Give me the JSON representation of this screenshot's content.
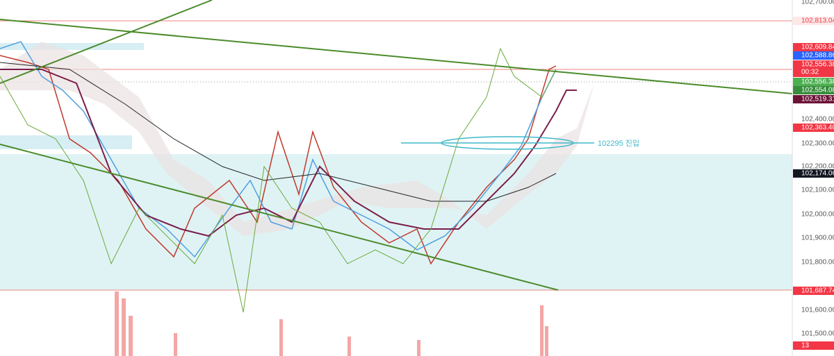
{
  "price_axis": {
    "ticks": [
      "102,700.00",
      "102,400.00",
      "102,300.00",
      "102,200.00",
      "102,100.00",
      "102,000.00",
      "101,900.00",
      "101,800.00",
      "101,600.00",
      "101,500.00"
    ]
  },
  "price_tags": [
    {
      "label": "102,813.04",
      "color": "#f23645",
      "style": "outline"
    },
    {
      "label": "102,609.84",
      "color": "#f23645",
      "style": "solid"
    },
    {
      "label": "102,588.86",
      "color": "#2962ff",
      "style": "solid"
    },
    {
      "label": "102,556.38",
      "sub": "00:32",
      "color": "#f23645",
      "style": "solid"
    },
    {
      "label": "102,556.38",
      "color": "#4caf50",
      "style": "solid"
    },
    {
      "label": "102,554.08",
      "color": "#388e3c",
      "style": "solid"
    },
    {
      "label": "102,519.31",
      "color": "#6d1237",
      "style": "solid"
    },
    {
      "label": "102,363.40",
      "color": "#f23645",
      "style": "solid"
    },
    {
      "label": "102,174.06",
      "color": "#131722",
      "style": "solid"
    },
    {
      "label": "101,687.74",
      "color": "#f23645",
      "style": "solid"
    },
    {
      "label": "13",
      "color": "#f23645",
      "style": "solid"
    }
  ],
  "annotation": "102295 진입"
}
